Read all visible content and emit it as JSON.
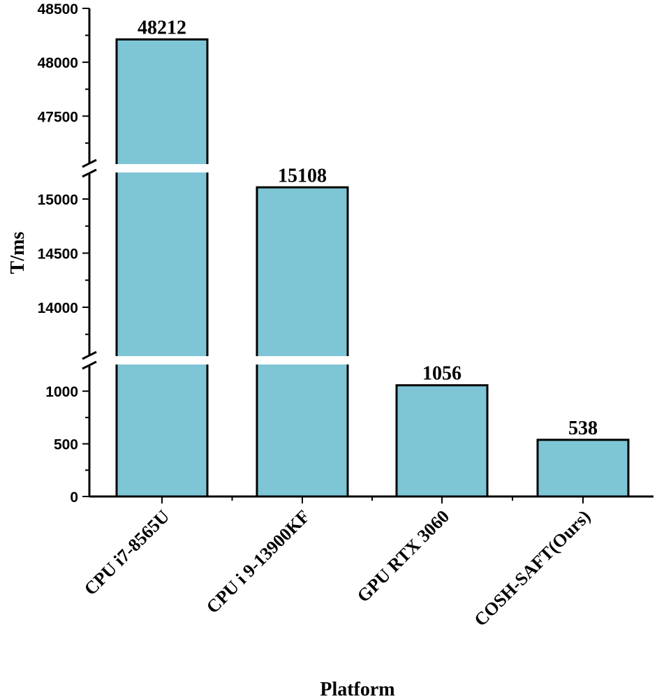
{
  "chart_data": {
    "type": "bar",
    "categories": [
      "CPU i7-8565U",
      "CPU i 9-13900KF",
      "GPU RTX 3060",
      "COSH-SAFT(Ours)"
    ],
    "values": [
      48212,
      15108,
      1056,
      538
    ],
    "value_labels": [
      "48212",
      "15108",
      "1056",
      "538"
    ],
    "xlabel": "Platform",
    "ylabel": "T/ms",
    "broken_axis": true,
    "y_segments": [
      {
        "range": [
          0,
          1200
        ],
        "ticks": [
          0,
          500,
          1000
        ]
      },
      {
        "range": [
          13600,
          15200
        ],
        "ticks": [
          14000,
          14500,
          15000
        ]
      },
      {
        "range": [
          47100,
          48500
        ],
        "ticks": [
          47500,
          48000,
          48500
        ]
      }
    ],
    "bar_color": "#7ec6d6",
    "edge_color": "#000000",
    "break_color": "#ffffff"
  }
}
